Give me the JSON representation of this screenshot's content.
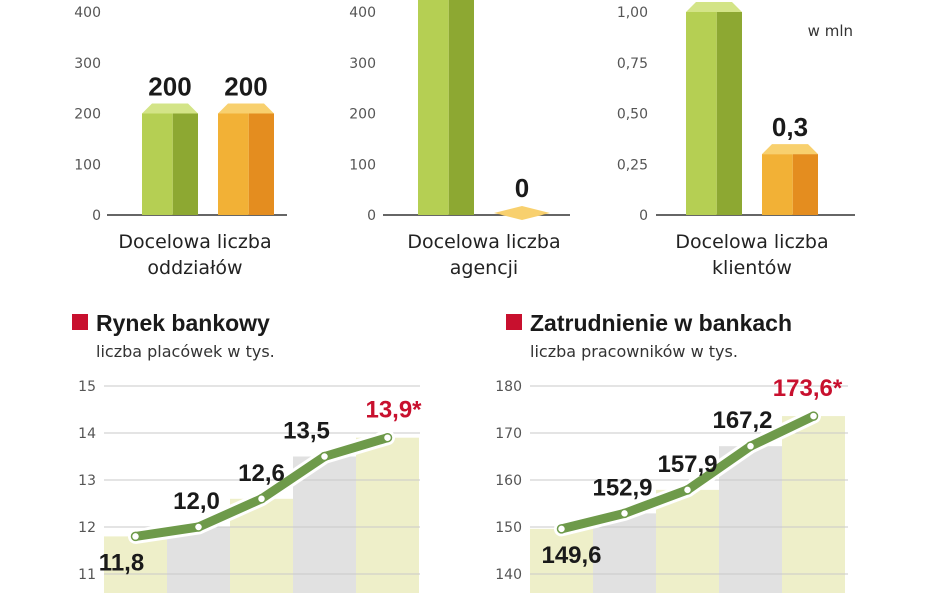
{
  "colors": {
    "green": "#b5cf53",
    "green_top": "#d3e487",
    "green_side": "#8da832",
    "orange": "#f2b136",
    "orange_top": "#f8d06e",
    "orange_side": "#e48d1f",
    "accent_red": "#c8102e",
    "line_green": "#6e9a4a",
    "bg_cream": "#eeefc9",
    "bg_gray": "#e1e1e1"
  },
  "chart_data": [
    {
      "type": "bar",
      "categories": [
        "Docelowa liczba oddziałów"
      ],
      "category_lines": [
        "Docelowa liczba",
        "oddziałów"
      ],
      "series": [
        {
          "color": "green",
          "values": [
            200
          ]
        },
        {
          "color": "orange",
          "values": [
            200
          ]
        }
      ],
      "value_labels": [
        "200",
        "200"
      ],
      "yticks": [
        "0",
        "100",
        "200",
        "300",
        "400"
      ],
      "ylim": [
        0,
        400
      ],
      "unit": ""
    },
    {
      "type": "bar",
      "categories": [
        "Docelowa liczba agencji"
      ],
      "category_lines": [
        "Docelowa liczba",
        "agencji"
      ],
      "series": [
        {
          "color": "green",
          "values": [
            430
          ]
        },
        {
          "color": "orange",
          "values": [
            0
          ]
        }
      ],
      "value_labels": [
        "",
        "0"
      ],
      "yticks": [
        "0",
        "100",
        "200",
        "300",
        "400"
      ],
      "ylim": [
        0,
        400
      ],
      "unit": ""
    },
    {
      "type": "bar",
      "categories": [
        "Docelowa liczba klientów"
      ],
      "category_lines": [
        "Docelowa liczba",
        "klientów"
      ],
      "series": [
        {
          "color": "green",
          "values": [
            1.0
          ]
        },
        {
          "color": "orange",
          "values": [
            0.3
          ]
        }
      ],
      "value_labels": [
        "",
        "0,3"
      ],
      "yticks": [
        "0",
        "0,25",
        "0,50",
        "0,75",
        "1,00"
      ],
      "ylim": [
        0,
        1
      ],
      "unit": "w mln"
    },
    {
      "type": "line",
      "title": "Rynek bankowy",
      "subtitle": "liczba placówek w tys.",
      "x_count": 5,
      "values": [
        11.8,
        12.0,
        12.6,
        13.5,
        13.9
      ],
      "labels": [
        "11,8",
        "12,0",
        "12,6",
        "13,5",
        "13,9*"
      ],
      "highlight_last": true,
      "yticks": [
        "11",
        "12",
        "13",
        "14",
        "15"
      ],
      "ylim": [
        11,
        15
      ]
    },
    {
      "type": "line",
      "title": "Zatrudnienie w bankach",
      "subtitle": "liczba pracowników w tys.",
      "x_count": 5,
      "values": [
        149.6,
        152.9,
        157.9,
        167.2,
        173.6
      ],
      "labels": [
        "149,6",
        "152,9",
        "157,9",
        "167,2",
        "173,6*"
      ],
      "highlight_last": true,
      "yticks": [
        "140",
        "150",
        "160",
        "170",
        "180"
      ],
      "ylim": [
        140,
        180
      ]
    }
  ]
}
